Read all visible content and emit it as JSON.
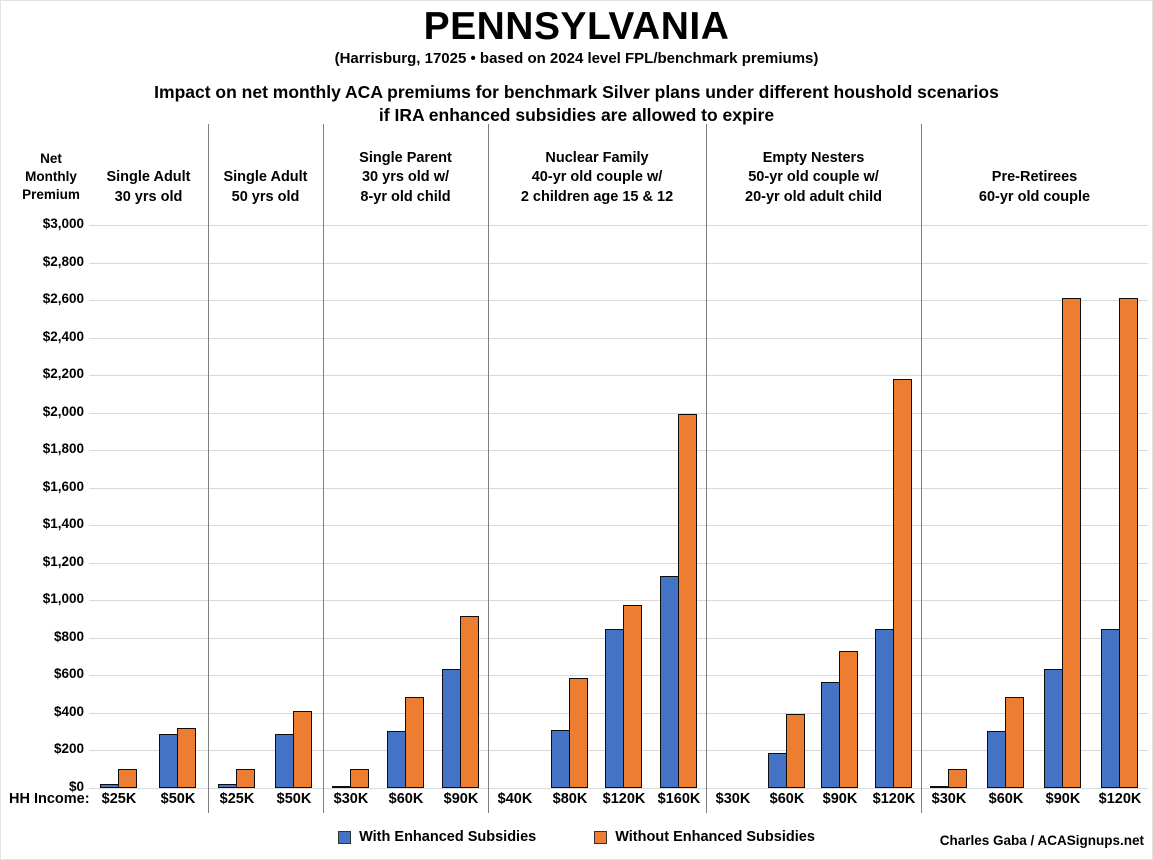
{
  "title": "PENNSYLVANIA",
  "subtitle": "(Harrisburg, 17025 • based on 2024 level FPL/benchmark premiums)",
  "heading_line1": "Impact on net monthly ACA premiums for benchmark Silver plans under different houshold scenarios",
  "heading_line2": "if IRA enhanced subsidies are allowed to expire",
  "y_axis_header": [
    "Net",
    "Monthly",
    "Premium"
  ],
  "hh_income_label": "HH Income:",
  "footer_credit": "Charles Gaba / ACASignups.net",
  "legend": [
    {
      "label": "With Enhanced Subsidies",
      "color": "#4472C4"
    },
    {
      "label": "Without Enhanced Subsidies",
      "color": "#ED7D31"
    }
  ],
  "colors": {
    "with_enhanced": "#4472C4",
    "without_enhanced": "#ED7D31",
    "bar_outline": "#0d0d0d",
    "gridline": "#D9D9D9",
    "separator": "#808080",
    "text": "#000000"
  },
  "chart_data": {
    "type": "bar",
    "title": "Impact on net monthly ACA premiums for benchmark Silver plans under different houshold scenarios if IRA enhanced subsidies are allowed to expire",
    "xlabel": "HH Income",
    "ylabel": "Net Monthly Premium",
    "ylim": [
      0,
      3000
    ],
    "ytick_step": 200,
    "ytick_labels_top_to_bottom": [
      "$3,000",
      "$2,800",
      "$2,600",
      "$2,400",
      "$2,200",
      "$2,000",
      "$1,800",
      "$1,600",
      "$1,400",
      "$1,200",
      "$1,000",
      "$800",
      "$600",
      "$400",
      "$200",
      "$0"
    ],
    "grid": true,
    "legend_position": "bottom",
    "series_names": [
      "With Enhanced Subsidies",
      "Without Enhanced Subsidies"
    ],
    "groups": [
      {
        "header_lines": [
          "Single Adult",
          "30 yrs old"
        ],
        "incomes": [
          "$25K",
          "$50K"
        ],
        "with_enhanced": [
          20,
          290
        ],
        "without_enhanced": [
          100,
          320
        ]
      },
      {
        "header_lines": [
          "Single Adult",
          "50 yrs old"
        ],
        "incomes": [
          "$25K",
          "$50K"
        ],
        "with_enhanced": [
          20,
          290
        ],
        "without_enhanced": [
          100,
          410
        ]
      },
      {
        "header_lines": [
          "Single Parent",
          "30 yrs old w/",
          "8-yr old child"
        ],
        "incomes": [
          "$30K",
          "$60K",
          "$90K"
        ],
        "with_enhanced": [
          10,
          305,
          635
        ],
        "without_enhanced": [
          100,
          485,
          915
        ]
      },
      {
        "header_lines": [
          "Nuclear Family",
          "40-yr old couple w/",
          "2 children age 15 & 12"
        ],
        "incomes": [
          "$40K",
          "$80K",
          "$120K",
          "$160K"
        ],
        "with_enhanced": [
          0,
          310,
          845,
          1130
        ],
        "without_enhanced": [
          0,
          585,
          975,
          1995
        ]
      },
      {
        "header_lines": [
          "Empty Nesters",
          "50-yr old couple w/",
          "20-yr old adult child"
        ],
        "incomes": [
          "$30K",
          "$60K",
          "$90K",
          "$120K"
        ],
        "with_enhanced": [
          0,
          185,
          565,
          845
        ],
        "without_enhanced": [
          0,
          395,
          730,
          2180
        ]
      },
      {
        "header_lines": [
          "Pre-Retirees",
          "60-yr old couple"
        ],
        "incomes": [
          "$30K",
          "$60K",
          "$90K",
          "$120K"
        ],
        "with_enhanced": [
          10,
          305,
          635,
          845
        ],
        "without_enhanced": [
          100,
          485,
          2610,
          2610
        ]
      }
    ]
  }
}
